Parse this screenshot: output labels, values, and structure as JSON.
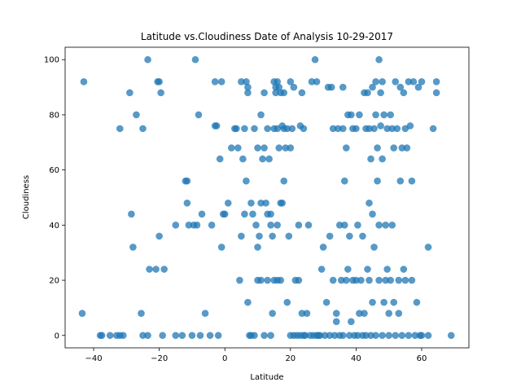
{
  "chart_data": {
    "type": "scatter",
    "title": "Latitude vs.Cloudiness Date of Analysis 10-29-2017",
    "xlabel": "Latitude",
    "ylabel": "Cloudiness",
    "xlim": [
      -48.7,
      74.4
    ],
    "ylim": [
      -4.5,
      104.5
    ],
    "xticks": [
      -40,
      -20,
      0,
      20,
      40,
      60
    ],
    "yticks": [
      0,
      20,
      40,
      60,
      80,
      100
    ],
    "grid": false,
    "marker_color": "#1f77b4",
    "marker_alpha": 0.75,
    "series": [
      {
        "points": [
          [
            -43,
            92
          ],
          [
            -43.5,
            8
          ],
          [
            -38,
            0
          ],
          [
            -37.5,
            0
          ],
          [
            -35,
            0
          ],
          [
            -33,
            0
          ],
          [
            -32,
            0
          ],
          [
            -32,
            75
          ],
          [
            -31,
            0
          ],
          [
            -29,
            88
          ],
          [
            -28.5,
            44
          ],
          [
            -28,
            32
          ],
          [
            -27,
            80
          ],
          [
            -25.5,
            8
          ],
          [
            -25,
            75
          ],
          [
            -25,
            0
          ],
          [
            -23.5,
            100
          ],
          [
            -23.5,
            0
          ],
          [
            -23,
            24
          ],
          [
            -21,
            24
          ],
          [
            -20.5,
            92
          ],
          [
            -20,
            92
          ],
          [
            -20,
            36
          ],
          [
            -19.5,
            88
          ],
          [
            -19,
            0
          ],
          [
            -18.5,
            24
          ],
          [
            -15,
            0
          ],
          [
            -15,
            40
          ],
          [
            -13,
            0
          ],
          [
            -12,
            56
          ],
          [
            -11.5,
            56
          ],
          [
            -11.5,
            48
          ],
          [
            -11,
            40
          ],
          [
            -10,
            0
          ],
          [
            -9.5,
            40
          ],
          [
            -9,
            100
          ],
          [
            -8.5,
            40
          ],
          [
            -8,
            80
          ],
          [
            -7.5,
            0
          ],
          [
            -7,
            44
          ],
          [
            -6,
            8
          ],
          [
            -4.5,
            0
          ],
          [
            -4,
            40
          ],
          [
            -3,
            76
          ],
          [
            -3,
            92
          ],
          [
            -2.5,
            76
          ],
          [
            -2,
            0
          ],
          [
            -1.5,
            64
          ],
          [
            -1,
            92
          ],
          [
            -1,
            32
          ],
          [
            -0.5,
            44
          ],
          [
            0,
            44
          ],
          [
            1,
            48
          ],
          [
            2,
            68
          ],
          [
            3,
            75
          ],
          [
            3.5,
            75
          ],
          [
            4,
            68
          ],
          [
            4.5,
            20
          ],
          [
            5,
            92
          ],
          [
            5,
            36
          ],
          [
            5.5,
            64
          ],
          [
            6,
            75
          ],
          [
            6,
            44
          ],
          [
            6.5,
            92
          ],
          [
            6.5,
            56
          ],
          [
            7,
            90
          ],
          [
            7,
            12
          ],
          [
            7,
            88
          ],
          [
            7.5,
            0
          ],
          [
            8,
            48
          ],
          [
            8,
            0
          ],
          [
            8.5,
            44
          ],
          [
            9,
            75
          ],
          [
            9,
            0
          ],
          [
            9.5,
            40
          ],
          [
            10,
            32
          ],
          [
            10,
            20
          ],
          [
            10,
            68
          ],
          [
            10.5,
            36
          ],
          [
            11,
            48
          ],
          [
            11,
            80
          ],
          [
            11,
            20
          ],
          [
            11.5,
            64
          ],
          [
            12,
            0
          ],
          [
            12,
            88
          ],
          [
            12,
            68
          ],
          [
            12.5,
            48
          ],
          [
            13,
            44
          ],
          [
            13,
            75
          ],
          [
            13,
            20
          ],
          [
            13.5,
            64
          ],
          [
            14,
            40
          ],
          [
            14,
            44
          ],
          [
            14,
            0
          ],
          [
            14.5,
            8
          ],
          [
            14.5,
            36
          ],
          [
            15,
            92
          ],
          [
            15,
            75
          ],
          [
            15,
            20
          ],
          [
            15.5,
            90
          ],
          [
            15.5,
            88
          ],
          [
            16,
            92
          ],
          [
            16,
            75
          ],
          [
            16,
            40
          ],
          [
            16,
            20
          ],
          [
            16.5,
            90
          ],
          [
            16.5,
            68
          ],
          [
            17,
            88
          ],
          [
            17,
            48
          ],
          [
            17,
            20
          ],
          [
            17.5,
            76
          ],
          [
            17.5,
            48
          ],
          [
            18,
            88
          ],
          [
            18,
            56
          ],
          [
            18,
            75
          ],
          [
            18.5,
            68
          ],
          [
            19,
            12
          ],
          [
            19,
            75
          ],
          [
            19.5,
            36
          ],
          [
            20,
            92
          ],
          [
            20,
            0
          ],
          [
            20,
            68
          ],
          [
            20.5,
            75
          ],
          [
            21,
            90
          ],
          [
            21,
            0
          ],
          [
            21.5,
            20
          ],
          [
            22,
            0
          ],
          [
            22.5,
            40
          ],
          [
            22.5,
            20
          ],
          [
            23,
            76
          ],
          [
            23,
            0
          ],
          [
            23.5,
            88
          ],
          [
            23.5,
            8
          ],
          [
            24,
            75
          ],
          [
            24,
            0
          ],
          [
            24.5,
            0
          ],
          [
            25,
            8
          ],
          [
            25.5,
            40
          ],
          [
            26,
            0
          ],
          [
            26.5,
            92
          ],
          [
            27,
            0
          ],
          [
            27.5,
            100
          ],
          [
            28,
            92
          ],
          [
            28,
            0
          ],
          [
            28.5,
            0
          ],
          [
            29,
            0
          ],
          [
            29.5,
            24
          ],
          [
            30,
            32
          ],
          [
            30.5,
            0
          ],
          [
            31,
            12
          ],
          [
            31.5,
            90
          ],
          [
            32,
            0
          ],
          [
            32,
            36
          ],
          [
            32.5,
            90
          ],
          [
            33,
            20
          ],
          [
            33,
            75
          ],
          [
            33.5,
            0
          ],
          [
            34,
            5
          ],
          [
            34,
            8
          ],
          [
            34.5,
            75
          ],
          [
            35,
            40
          ],
          [
            35,
            0
          ],
          [
            35.5,
            20
          ],
          [
            36,
            90
          ],
          [
            36,
            75
          ],
          [
            36,
            0
          ],
          [
            36.5,
            40
          ],
          [
            36.5,
            56
          ],
          [
            37,
            68
          ],
          [
            37,
            20
          ],
          [
            37.5,
            24
          ],
          [
            37.5,
            80
          ],
          [
            38,
            0
          ],
          [
            38,
            36
          ],
          [
            38.5,
            80
          ],
          [
            38.5,
            5
          ],
          [
            39,
            20
          ],
          [
            39,
            75
          ],
          [
            39.5,
            0
          ],
          [
            40,
            20
          ],
          [
            40,
            75
          ],
          [
            40.5,
            40
          ],
          [
            40.5,
            0
          ],
          [
            41,
            8
          ],
          [
            41,
            80
          ],
          [
            41.5,
            20
          ],
          [
            42,
            0
          ],
          [
            42,
            36
          ],
          [
            42.5,
            8
          ],
          [
            42.5,
            88
          ],
          [
            43,
            0
          ],
          [
            43,
            75
          ],
          [
            43.5,
            24
          ],
          [
            43.5,
            88
          ],
          [
            44,
            48
          ],
          [
            44,
            20
          ],
          [
            44,
            75
          ],
          [
            44.5,
            64
          ],
          [
            44.5,
            0
          ],
          [
            45,
            44
          ],
          [
            45,
            90
          ],
          [
            45,
            12
          ],
          [
            45.5,
            32
          ],
          [
            45.5,
            75
          ],
          [
            46,
            80
          ],
          [
            46,
            0
          ],
          [
            46,
            92
          ],
          [
            46.5,
            56
          ],
          [
            46.5,
            68
          ],
          [
            47,
            40
          ],
          [
            47,
            100
          ],
          [
            47,
            20
          ],
          [
            47.5,
            76
          ],
          [
            47.5,
            88
          ],
          [
            48,
            92
          ],
          [
            48,
            0
          ],
          [
            48,
            64
          ],
          [
            48.5,
            80
          ],
          [
            48.5,
            12
          ],
          [
            49,
            20
          ],
          [
            49,
            40
          ],
          [
            49.5,
            24
          ],
          [
            49.5,
            75
          ],
          [
            50,
            8
          ],
          [
            50,
            0
          ],
          [
            50.5,
            80
          ],
          [
            50.5,
            20
          ],
          [
            51,
            40
          ],
          [
            51,
            75
          ],
          [
            51.5,
            12
          ],
          [
            51.5,
            68
          ],
          [
            52,
            92
          ],
          [
            52,
            0
          ],
          [
            52.5,
            75
          ],
          [
            53,
            20
          ],
          [
            53,
            8
          ],
          [
            53.5,
            56
          ],
          [
            53.5,
            90
          ],
          [
            54,
            68
          ],
          [
            54,
            0
          ],
          [
            54.5,
            88
          ],
          [
            54.5,
            24
          ],
          [
            55,
            20
          ],
          [
            55,
            75
          ],
          [
            55.5,
            68
          ],
          [
            56,
            92
          ],
          [
            56,
            0
          ],
          [
            56.5,
            76
          ],
          [
            57,
            56
          ],
          [
            57,
            20
          ],
          [
            57.5,
            92
          ],
          [
            58,
            0
          ],
          [
            58.5,
            12
          ],
          [
            59,
            90
          ],
          [
            59.5,
            0
          ],
          [
            60,
            92
          ],
          [
            60,
            0
          ],
          [
            62,
            32
          ],
          [
            62,
            0
          ],
          [
            63.5,
            75
          ],
          [
            64.5,
            92
          ],
          [
            64.5,
            88
          ],
          [
            69,
            0
          ]
        ]
      }
    ]
  }
}
